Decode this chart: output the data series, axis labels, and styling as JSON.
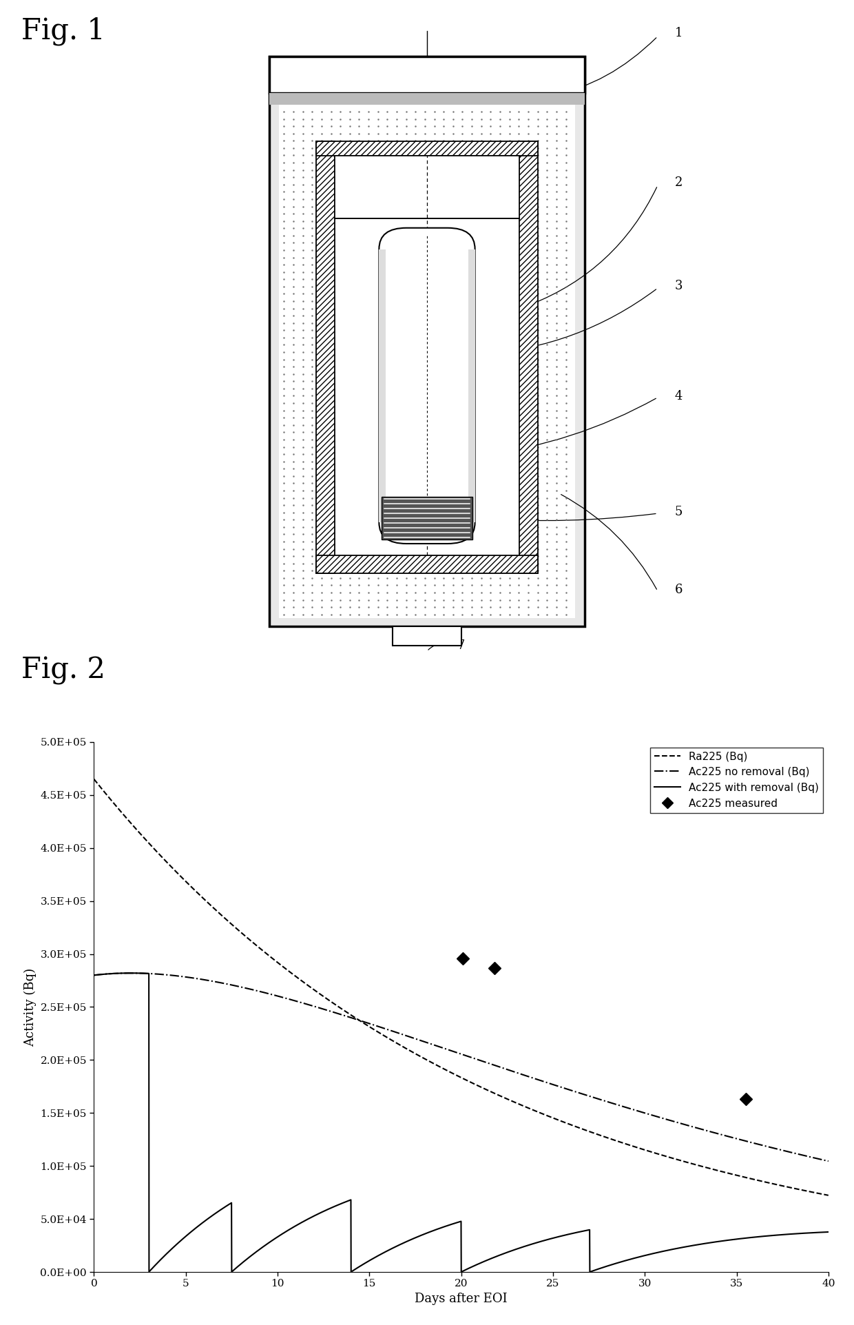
{
  "fig1_title": "Fig. 1",
  "fig2_title": "Fig. 2",
  "graph_xlabel": "Days after EOI",
  "graph_ylabel": "Activity (Bq)",
  "graph_ylim": [
    0,
    500000
  ],
  "graph_xlim": [
    0,
    40
  ],
  "yticks": [
    0,
    50000,
    100000,
    150000,
    200000,
    250000,
    300000,
    350000,
    400000,
    450000,
    500000
  ],
  "ytick_labels": [
    "0.0E+00",
    "5.0E+04",
    "1.0E+05",
    "1.5E+05",
    "2.0E+05",
    "2.5E+05",
    "3.0E+05",
    "3.5E+05",
    "4.0E+05",
    "4.5E+05",
    "5.0E+05"
  ],
  "xticks": [
    0,
    5,
    10,
    15,
    20,
    25,
    30,
    35,
    40
  ],
  "legend_labels": [
    "Ra225 (Bq)",
    "Ac225 no removal (Bq)",
    "Ac225 with removal (Bq)",
    "Ac225 measured"
  ],
  "measured_points_x": [
    20.1,
    21.8,
    35.5
  ],
  "measured_points_y": [
    296000,
    287000,
    163000
  ],
  "Ra225_initial": 465000,
  "Ac225_no_removal_t0": 280000,
  "Ra225_halflife_days": 14.9,
  "Ac225_halflife_days": 9.92,
  "removal_times": [
    3.0,
    7.5,
    14.0,
    20.0,
    27.0
  ],
  "background_color": "#ffffff"
}
